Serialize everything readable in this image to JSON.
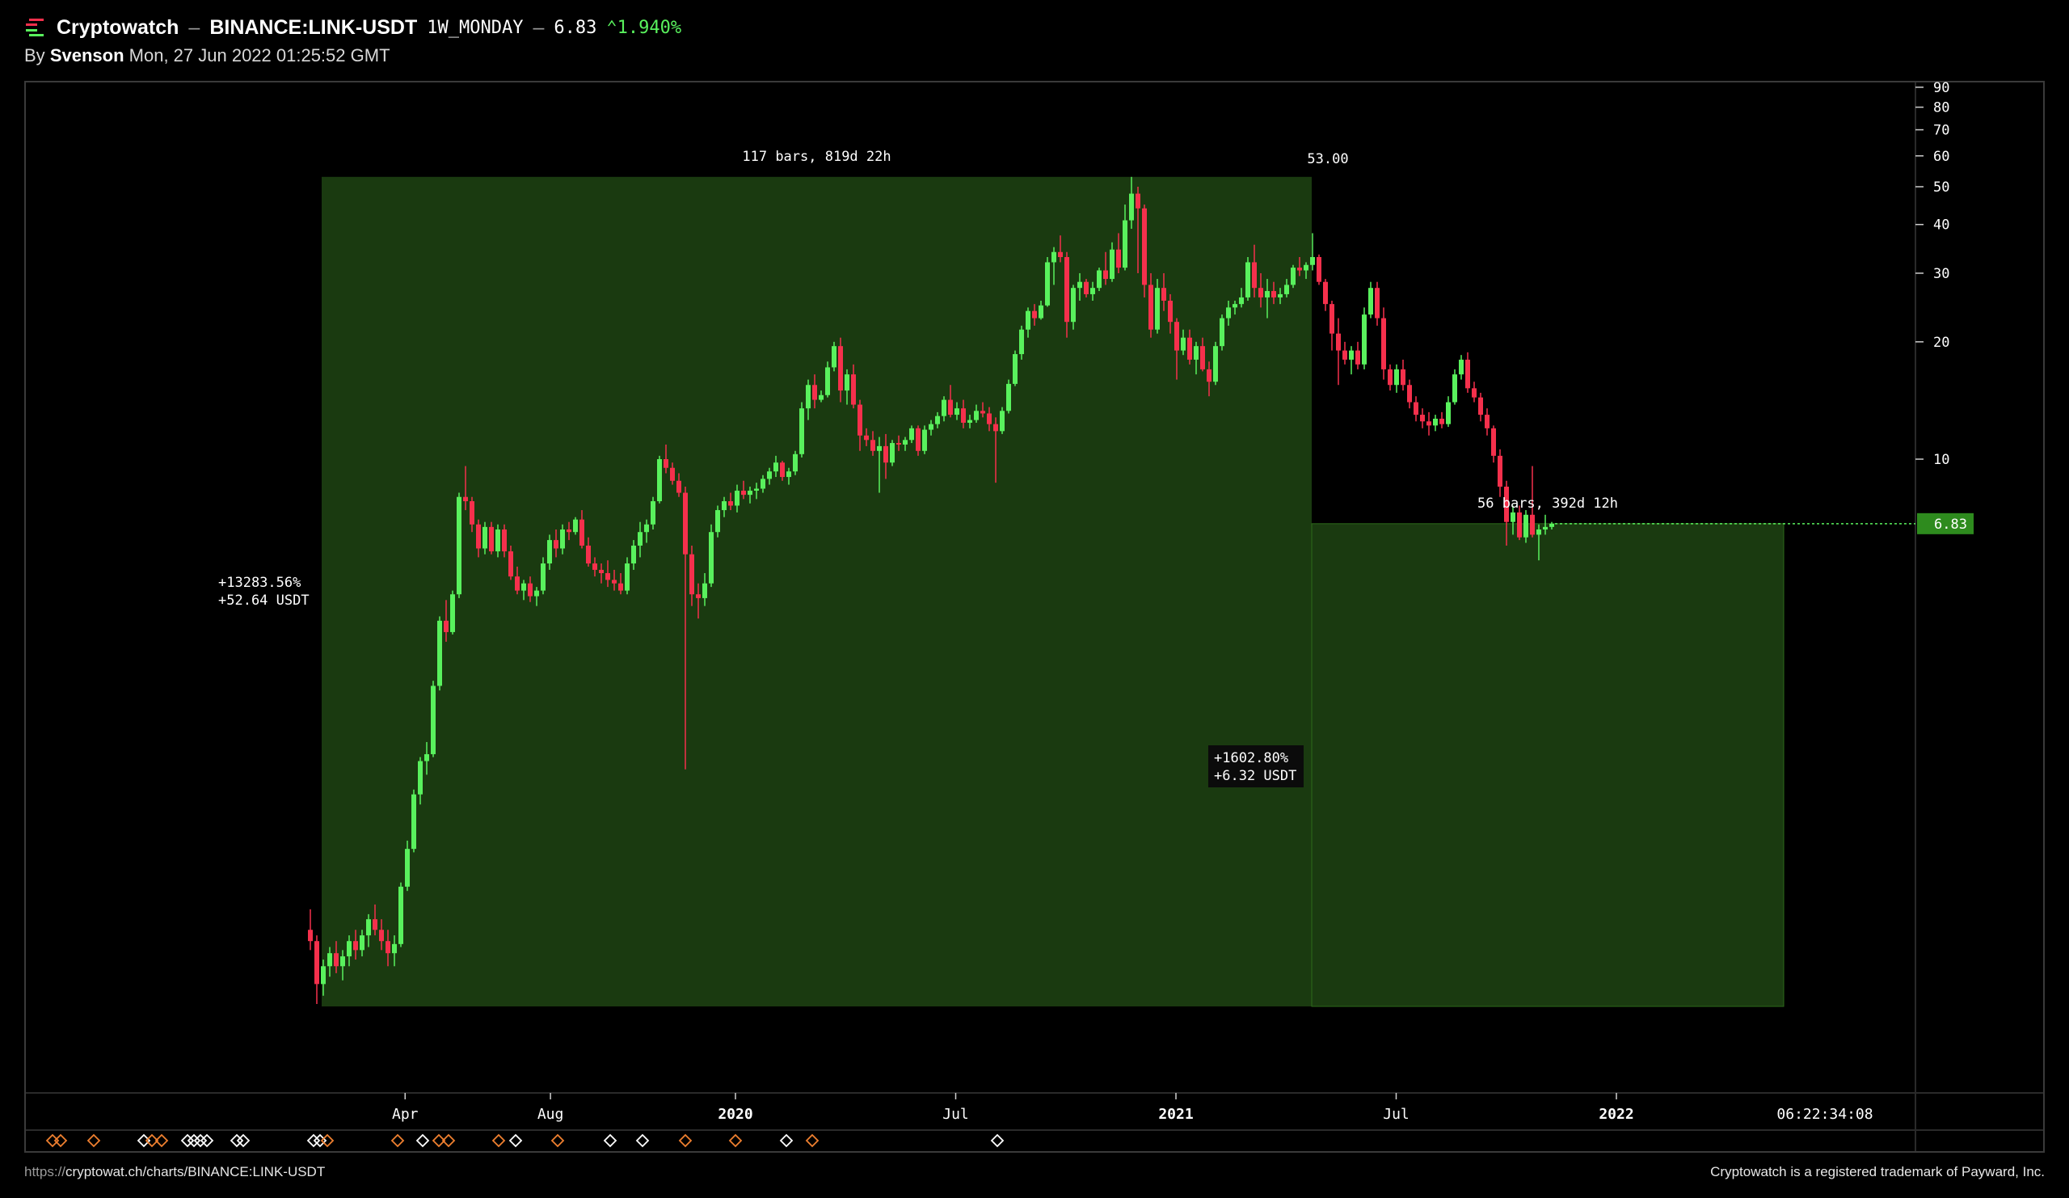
{
  "header": {
    "brand": "Cryptowatch",
    "separator": "–",
    "pair": "BINANCE:LINK-USDT",
    "timeframe": "1W_MONDAY",
    "price": "6.83",
    "change": "1.940%",
    "change_icon": "up-caret-icon",
    "byline_prefix": "By",
    "author": "Svenson",
    "timestamp": "Mon, 27 Jun 2022 01:25:52 GMT"
  },
  "footer": {
    "url_prefix": "https://",
    "url_rest": "cryptowat.ch/charts/BINANCE:LINK-USDT",
    "trademark": "Cryptowatch is a registered trademark of Payward, Inc."
  },
  "colors": {
    "up": "#59f15d",
    "down": "#f5304c",
    "range_fill": "#1a3a10",
    "price_tag": "#2e8b1e",
    "diamond_orange": "#f08030",
    "diamond_white": "#ffffff"
  },
  "chart_data": {
    "type": "candlestick",
    "scale": "log",
    "y_ticks": [
      "90",
      "80",
      "70",
      "60",
      "50",
      "40",
      "30",
      "20",
      "10"
    ],
    "x_ticks": [
      {
        "label": "Apr",
        "x": 2019.25
      },
      {
        "label": "Aug",
        "x": 2019.58
      },
      {
        "label": "2020",
        "x": 2020.0,
        "bold": true
      },
      {
        "label": "Jul",
        "x": 2020.5
      },
      {
        "label": "2021",
        "x": 2021.0,
        "bold": true
      },
      {
        "label": "Jul",
        "x": 2021.5
      },
      {
        "label": "2022",
        "x": 2022.0,
        "bold": true
      }
    ],
    "last_price": "6.83",
    "countdown": "06:22:34:08",
    "peak_label": "53.00",
    "range1": {
      "bars": "117 bars, 819d 22h",
      "pct": "+13283.56%",
      "abs": "+52.64 USDT",
      "from": [
        2019.0,
        0.4
      ],
      "to": [
        2021.35,
        53.0
      ]
    },
    "range2": {
      "bars": "56 bars, 392d 12h",
      "pct": "+1602.80%",
      "abs": "+6.32 USDT",
      "from": [
        2021.35,
        6.83
      ],
      "to": [
        2022.4,
        0.4
      ]
    },
    "candles_ohlc": [
      [
        0.62,
        0.7,
        0.55,
        0.58
      ],
      [
        0.58,
        0.6,
        0.4,
        0.45
      ],
      [
        0.45,
        0.52,
        0.42,
        0.5
      ],
      [
        0.5,
        0.56,
        0.47,
        0.54
      ],
      [
        0.54,
        0.58,
        0.48,
        0.5
      ],
      [
        0.5,
        0.55,
        0.46,
        0.53
      ],
      [
        0.53,
        0.6,
        0.5,
        0.58
      ],
      [
        0.58,
        0.62,
        0.52,
        0.55
      ],
      [
        0.55,
        0.62,
        0.53,
        0.6
      ],
      [
        0.6,
        0.68,
        0.56,
        0.66
      ],
      [
        0.66,
        0.72,
        0.6,
        0.62
      ],
      [
        0.62,
        0.66,
        0.55,
        0.58
      ],
      [
        0.58,
        0.62,
        0.5,
        0.54
      ],
      [
        0.54,
        0.6,
        0.5,
        0.57
      ],
      [
        0.57,
        0.82,
        0.56,
        0.8
      ],
      [
        0.8,
        1.05,
        0.78,
        1.0
      ],
      [
        1.0,
        1.42,
        0.98,
        1.38
      ],
      [
        1.38,
        1.72,
        1.3,
        1.68
      ],
      [
        1.68,
        1.88,
        1.55,
        1.75
      ],
      [
        1.75,
        2.7,
        1.72,
        2.62
      ],
      [
        2.62,
        3.95,
        2.55,
        3.85
      ],
      [
        3.85,
        4.35,
        3.4,
        3.6
      ],
      [
        3.6,
        4.6,
        3.55,
        4.5
      ],
      [
        4.5,
        8.2,
        4.4,
        8.0
      ],
      [
        8.0,
        9.6,
        7.4,
        7.8
      ],
      [
        7.8,
        8.0,
        6.5,
        6.8
      ],
      [
        6.8,
        7.0,
        5.6,
        5.9
      ],
      [
        5.9,
        6.9,
        5.7,
        6.7
      ],
      [
        6.7,
        6.9,
        5.7,
        5.8
      ],
      [
        5.8,
        6.8,
        5.6,
        6.6
      ],
      [
        6.6,
        6.8,
        5.6,
        5.8
      ],
      [
        5.8,
        6.0,
        4.9,
        5.0
      ],
      [
        5.0,
        5.3,
        4.5,
        4.6
      ],
      [
        4.6,
        4.9,
        4.35,
        4.8
      ],
      [
        4.8,
        5.0,
        4.3,
        4.45
      ],
      [
        4.45,
        4.7,
        4.2,
        4.6
      ],
      [
        4.6,
        5.6,
        4.5,
        5.4
      ],
      [
        5.4,
        6.4,
        5.2,
        6.2
      ],
      [
        6.2,
        6.6,
        5.6,
        5.9
      ],
      [
        5.9,
        6.8,
        5.7,
        6.6
      ],
      [
        6.6,
        6.9,
        6.2,
        6.5
      ],
      [
        6.5,
        7.1,
        6.4,
        7.0
      ],
      [
        7.0,
        7.4,
        5.9,
        6.0
      ],
      [
        6.0,
        6.3,
        5.3,
        5.4
      ],
      [
        5.4,
        5.6,
        5.0,
        5.2
      ],
      [
        5.2,
        5.4,
        4.8,
        5.1
      ],
      [
        5.1,
        5.5,
        4.7,
        4.9
      ],
      [
        4.9,
        5.2,
        4.6,
        4.8
      ],
      [
        4.8,
        5.1,
        4.5,
        4.6
      ],
      [
        4.6,
        5.6,
        4.5,
        5.4
      ],
      [
        5.4,
        6.2,
        5.2,
        6.0
      ],
      [
        6.0,
        6.9,
        5.6,
        6.5
      ],
      [
        6.5,
        7.0,
        6.1,
        6.8
      ],
      [
        6.8,
        8.0,
        6.6,
        7.8
      ],
      [
        7.8,
        10.2,
        7.7,
        10.0
      ],
      [
        10.0,
        10.9,
        9.2,
        9.5
      ],
      [
        9.5,
        9.8,
        8.6,
        8.8
      ],
      [
        8.8,
        9.2,
        8.0,
        8.2
      ],
      [
        8.2,
        8.5,
        1.6,
        5.7
      ],
      [
        5.7,
        6.0,
        4.2,
        4.5
      ],
      [
        4.5,
        4.8,
        3.9,
        4.4
      ],
      [
        4.4,
        5.1,
        4.2,
        4.8
      ],
      [
        4.8,
        6.8,
        4.7,
        6.5
      ],
      [
        6.5,
        7.6,
        6.3,
        7.4
      ],
      [
        7.4,
        8.0,
        7.1,
        7.8
      ],
      [
        7.8,
        8.2,
        7.4,
        7.6
      ],
      [
        7.6,
        8.6,
        7.3,
        8.3
      ],
      [
        8.3,
        8.8,
        7.9,
        8.1
      ],
      [
        8.1,
        8.5,
        7.7,
        8.3
      ],
      [
        8.3,
        8.7,
        7.9,
        8.4
      ],
      [
        8.4,
        9.1,
        8.2,
        8.9
      ],
      [
        8.9,
        9.5,
        8.6,
        9.3
      ],
      [
        9.3,
        10.2,
        9.0,
        9.8
      ],
      [
        9.8,
        9.9,
        8.8,
        9.0
      ],
      [
        9.0,
        9.5,
        8.6,
        9.3
      ],
      [
        9.3,
        10.5,
        9.1,
        10.3
      ],
      [
        10.3,
        14.0,
        10.1,
        13.5
      ],
      [
        13.5,
        16.0,
        12.6,
        15.5
      ],
      [
        15.5,
        16.5,
        13.5,
        14.2
      ],
      [
        14.2,
        15.0,
        14.0,
        14.6
      ],
      [
        14.6,
        17.8,
        14.4,
        17.2
      ],
      [
        17.2,
        20.0,
        16.8,
        19.5
      ],
      [
        19.5,
        20.5,
        14.0,
        15.0
      ],
      [
        15.0,
        17.0,
        13.8,
        16.5
      ],
      [
        16.5,
        17.5,
        13.5,
        13.8
      ],
      [
        13.8,
        14.2,
        10.5,
        11.5
      ],
      [
        11.5,
        12.0,
        10.8,
        11.2
      ],
      [
        11.2,
        11.8,
        10.2,
        10.5
      ],
      [
        10.5,
        11.4,
        8.2,
        10.8
      ],
      [
        10.8,
        11.6,
        8.9,
        9.8
      ],
      [
        9.8,
        11.2,
        9.6,
        11.0
      ],
      [
        11.0,
        11.5,
        10.5,
        10.9
      ],
      [
        10.9,
        11.4,
        10.5,
        11.2
      ],
      [
        11.2,
        12.2,
        11.0,
        12.0
      ],
      [
        12.0,
        12.2,
        10.2,
        10.5
      ],
      [
        10.5,
        12.2,
        10.3,
        11.9
      ],
      [
        11.9,
        12.6,
        11.5,
        12.3
      ],
      [
        12.3,
        13.2,
        12.0,
        12.9
      ],
      [
        12.9,
        14.5,
        12.5,
        14.2
      ],
      [
        14.2,
        15.5,
        12.8,
        13.0
      ],
      [
        13.0,
        14.0,
        12.6,
        13.5
      ],
      [
        13.5,
        14.2,
        12.0,
        12.4
      ],
      [
        12.4,
        13.0,
        12.0,
        12.6
      ],
      [
        12.6,
        13.8,
        12.4,
        13.3
      ],
      [
        13.3,
        14.0,
        12.8,
        13.1
      ],
      [
        13.1,
        13.6,
        11.8,
        12.3
      ],
      [
        12.3,
        12.8,
        8.7,
        11.8
      ],
      [
        11.8,
        13.6,
        11.6,
        13.3
      ],
      [
        13.3,
        16.0,
        13.1,
        15.6
      ],
      [
        15.6,
        19.0,
        15.4,
        18.6
      ],
      [
        18.6,
        22.0,
        18.0,
        21.5
      ],
      [
        21.5,
        24.5,
        20.5,
        24.0
      ],
      [
        24.0,
        25.0,
        22.0,
        23.0
      ],
      [
        23.0,
        25.5,
        22.8,
        24.8
      ],
      [
        24.8,
        33.0,
        24.6,
        32.0
      ],
      [
        32.0,
        35.0,
        28.0,
        34.0
      ],
      [
        34.0,
        37.5,
        32.0,
        33.0
      ],
      [
        33.0,
        34.0,
        20.5,
        22.5
      ],
      [
        22.5,
        28.0,
        21.5,
        27.5
      ],
      [
        27.5,
        30.0,
        25.5,
        28.5
      ],
      [
        28.5,
        29.0,
        26.0,
        26.5
      ],
      [
        26.5,
        28.5,
        25.5,
        27.5
      ],
      [
        27.5,
        31.0,
        27.0,
        30.5
      ],
      [
        30.5,
        34.0,
        28.0,
        29.0
      ],
      [
        29.0,
        36.0,
        28.5,
        34.5
      ],
      [
        34.5,
        38.0,
        30.0,
        31.0
      ],
      [
        31.0,
        45.0,
        30.5,
        41.0
      ],
      [
        41.0,
        53.0,
        39.0,
        48.0
      ],
      [
        48.0,
        50.0,
        30.0,
        44.0
      ],
      [
        44.0,
        45.0,
        26.0,
        28.0
      ],
      [
        28.0,
        30.0,
        20.5,
        21.5
      ],
      [
        21.5,
        29.0,
        21.0,
        27.5
      ],
      [
        27.5,
        30.0,
        24.0,
        25.5
      ],
      [
        25.5,
        26.5,
        21.0,
        22.5
      ],
      [
        22.5,
        23.0,
        16.0,
        19.0
      ],
      [
        19.0,
        21.5,
        18.5,
        20.5
      ],
      [
        20.5,
        21.5,
        17.5,
        18.0
      ],
      [
        18.0,
        20.0,
        16.5,
        19.5
      ],
      [
        19.5,
        20.5,
        16.8,
        17.0
      ],
      [
        17.0,
        17.8,
        14.5,
        15.8
      ],
      [
        15.8,
        20.0,
        15.5,
        19.5
      ],
      [
        19.5,
        23.5,
        19.0,
        23.0
      ],
      [
        23.0,
        25.5,
        22.0,
        24.5
      ],
      [
        24.5,
        25.5,
        23.5,
        25.0
      ],
      [
        25.0,
        27.5,
        24.5,
        26.0
      ],
      [
        26.0,
        33.0,
        25.5,
        32.0
      ],
      [
        32.0,
        35.5,
        26.0,
        27.5
      ],
      [
        27.5,
        30.0,
        24.5,
        26.0
      ],
      [
        26.0,
        29.0,
        23.0,
        27.0
      ],
      [
        27.0,
        28.5,
        25.0,
        26.0
      ],
      [
        26.0,
        27.5,
        25.0,
        26.5
      ],
      [
        26.5,
        29.0,
        26.0,
        28.0
      ],
      [
        28.0,
        31.5,
        27.5,
        31.0
      ],
      [
        31.0,
        33.0,
        29.5,
        30.5
      ],
      [
        30.5,
        32.0,
        29.0,
        31.5
      ],
      [
        31.5,
        38.0,
        30.5,
        33.0
      ],
      [
        33.0,
        33.5,
        28.0,
        28.5
      ],
      [
        28.5,
        29.0,
        24.0,
        25.0
      ],
      [
        25.0,
        25.5,
        19.0,
        21.0
      ],
      [
        21.0,
        23.0,
        15.5,
        19.0
      ],
      [
        19.0,
        20.0,
        17.5,
        18.0
      ],
      [
        18.0,
        19.5,
        16.5,
        19.0
      ],
      [
        19.0,
        20.0,
        17.0,
        17.5
      ],
      [
        17.5,
        24.5,
        17.0,
        23.5
      ],
      [
        23.5,
        28.5,
        23.0,
        27.5
      ],
      [
        27.5,
        28.5,
        22.0,
        23.0
      ],
      [
        23.0,
        24.5,
        16.0,
        17.0
      ],
      [
        17.0,
        17.5,
        15.0,
        15.5
      ],
      [
        15.5,
        17.5,
        14.8,
        17.0
      ],
      [
        17.0,
        18.0,
        15.0,
        15.5
      ],
      [
        15.5,
        16.0,
        13.5,
        14.0
      ],
      [
        14.0,
        14.5,
        12.5,
        13.0
      ],
      [
        13.0,
        13.5,
        12.0,
        12.5
      ],
      [
        12.5,
        13.2,
        11.5,
        12.2
      ],
      [
        12.2,
        13.0,
        11.8,
        12.7
      ],
      [
        12.7,
        13.2,
        12.0,
        12.3
      ],
      [
        12.3,
        14.5,
        12.1,
        14.0
      ],
      [
        14.0,
        17.0,
        13.8,
        16.5
      ],
      [
        16.5,
        18.5,
        16.0,
        18.0
      ],
      [
        18.0,
        18.8,
        14.8,
        15.2
      ],
      [
        15.2,
        15.8,
        14.0,
        14.4
      ],
      [
        14.4,
        14.8,
        12.5,
        13.0
      ],
      [
        13.0,
        13.5,
        11.5,
        12.0
      ],
      [
        12.0,
        12.2,
        9.8,
        10.2
      ],
      [
        10.2,
        10.6,
        8.0,
        8.5
      ],
      [
        8.5,
        8.8,
        6.0,
        6.9
      ],
      [
        6.9,
        7.6,
        6.4,
        7.3
      ],
      [
        7.3,
        7.6,
        6.2,
        6.3
      ],
      [
        6.3,
        7.4,
        6.1,
        7.2
      ],
      [
        7.2,
        9.6,
        6.3,
        6.4
      ],
      [
        6.4,
        6.8,
        5.5,
        6.6
      ],
      [
        6.6,
        7.2,
        6.4,
        6.7
      ],
      [
        6.7,
        6.9,
        6.6,
        6.83
      ]
    ],
    "event_markers": [
      {
        "x": 65,
        "c": "o"
      },
      {
        "x": 75,
        "c": "o"
      },
      {
        "x": 116,
        "c": "o"
      },
      {
        "x": 178,
        "c": "w"
      },
      {
        "x": 188,
        "c": "o"
      },
      {
        "x": 200,
        "c": "o"
      },
      {
        "x": 232,
        "c": "w"
      },
      {
        "x": 240,
        "c": "w"
      },
      {
        "x": 248,
        "c": "w"
      },
      {
        "x": 256,
        "c": "w"
      },
      {
        "x": 293,
        "c": "w"
      },
      {
        "x": 301,
        "c": "w"
      },
      {
        "x": 388,
        "c": "w"
      },
      {
        "x": 396,
        "c": "w"
      },
      {
        "x": 405,
        "c": "o"
      },
      {
        "x": 492,
        "c": "o"
      },
      {
        "x": 523,
        "c": "w"
      },
      {
        "x": 543,
        "c": "o"
      },
      {
        "x": 555,
        "c": "o"
      },
      {
        "x": 617,
        "c": "o"
      },
      {
        "x": 638,
        "c": "w"
      },
      {
        "x": 690,
        "c": "o"
      },
      {
        "x": 755,
        "c": "w"
      },
      {
        "x": 795,
        "c": "w"
      },
      {
        "x": 848,
        "c": "o"
      },
      {
        "x": 910,
        "c": "o"
      },
      {
        "x": 973,
        "c": "w"
      },
      {
        "x": 1005,
        "c": "o"
      },
      {
        "x": 1234,
        "c": "w"
      }
    ]
  }
}
